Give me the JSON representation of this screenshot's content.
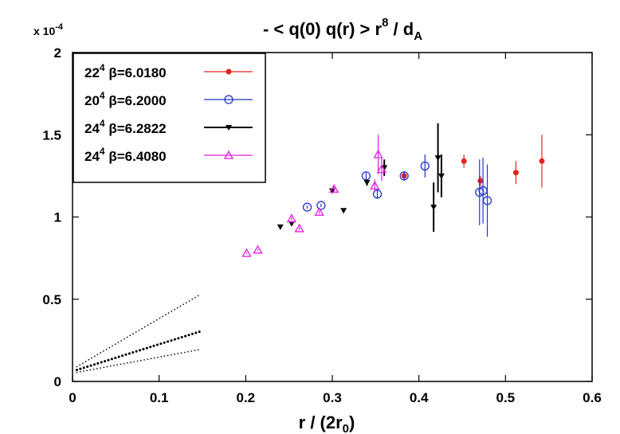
{
  "chart_data": {
    "type": "scatter",
    "title": "- < q(0) q(r) > r",
    "title_sup": "8",
    "title_tail": " / d",
    "title_sub": "A",
    "ylabel": "",
    "xlabel": "r / (2r",
    "xlabel_sub": "0",
    "xlabel_tail": ")",
    "y_multiplier": "x 10",
    "y_multiplier_exp": "-4",
    "xlim": [
      0,
      0.6
    ],
    "ylim": [
      0,
      2
    ],
    "x_ticks": [
      0,
      0.1,
      0.2,
      0.3,
      0.4,
      0.5,
      0.6
    ],
    "x_tick_labels": [
      "0",
      "0.1",
      "0.2",
      "0.3",
      "0.4",
      "0.5",
      "0.6"
    ],
    "y_ticks": [
      0,
      0.5,
      1,
      1.5,
      2
    ],
    "y_tick_labels": [
      "0",
      "0.5",
      "1",
      "1.5",
      "2"
    ],
    "grid": false,
    "legend_position": "top-left",
    "series": [
      {
        "name": "22",
        "name_sup": "4",
        "name_tail": " β=6.0180",
        "color": "#e8231c",
        "marker": "filled-circle",
        "points": [
          {
            "x": 0.383,
            "y": 1.25,
            "err": 0.02
          },
          {
            "x": 0.452,
            "y": 1.34,
            "err": 0.04
          },
          {
            "x": 0.471,
            "y": 1.22,
            "err": 0.03
          },
          {
            "x": 0.512,
            "y": 1.27,
            "err": 0.07
          },
          {
            "x": 0.542,
            "y": 1.34,
            "err": 0.16
          }
        ]
      },
      {
        "name": "20",
        "name_sup": "4",
        "name_tail": " β=6.2000",
        "color": "#2233cc",
        "marker": "open-circle",
        "points": [
          {
            "x": 0.271,
            "y": 1.06,
            "err": 0.01
          },
          {
            "x": 0.287,
            "y": 1.07,
            "err": 0.01
          },
          {
            "x": 0.339,
            "y": 1.25,
            "err": 0.02
          },
          {
            "x": 0.352,
            "y": 1.14,
            "err": 0.03
          },
          {
            "x": 0.383,
            "y": 1.25,
            "err": 0.03
          },
          {
            "x": 0.407,
            "y": 1.31,
            "err": 0.07
          },
          {
            "x": 0.47,
            "y": 1.15,
            "err": 0.2
          },
          {
            "x": 0.474,
            "y": 1.16,
            "err": 0.2
          },
          {
            "x": 0.479,
            "y": 1.1,
            "err": 0.22
          }
        ]
      },
      {
        "name": "24",
        "name_sup": "4",
        "name_tail": " β=6.2822",
        "color": "#000000",
        "marker": "filled-triangle-down",
        "points": [
          {
            "x": 0.24,
            "y": 0.94,
            "err": 0.005
          },
          {
            "x": 0.253,
            "y": 0.96,
            "err": 0.005
          },
          {
            "x": 0.3,
            "y": 1.16,
            "err": 0.01
          },
          {
            "x": 0.313,
            "y": 1.04,
            "err": 0.01
          },
          {
            "x": 0.34,
            "y": 1.21,
            "err": 0.02
          },
          {
            "x": 0.36,
            "y": 1.3,
            "err": 0.05
          },
          {
            "x": 0.417,
            "y": 1.06,
            "err": 0.15
          },
          {
            "x": 0.422,
            "y": 1.36,
            "err": 0.21
          },
          {
            "x": 0.426,
            "y": 1.25,
            "err": 0.13
          }
        ]
      },
      {
        "name": "24",
        "name_sup": "4",
        "name_tail": " β=6.4080",
        "color": "#e020e0",
        "marker": "open-triangle-up",
        "points": [
          {
            "x": 0.201,
            "y": 0.78,
            "err": 0.005
          },
          {
            "x": 0.214,
            "y": 0.8,
            "err": 0.005
          },
          {
            "x": 0.253,
            "y": 0.99,
            "err": 0.01
          },
          {
            "x": 0.262,
            "y": 0.93,
            "err": 0.01
          },
          {
            "x": 0.285,
            "y": 1.03,
            "err": 0.01
          },
          {
            "x": 0.302,
            "y": 1.17,
            "err": 0.02
          },
          {
            "x": 0.349,
            "y": 1.19,
            "err": 0.04
          },
          {
            "x": 0.353,
            "y": 1.38,
            "err": 0.12
          },
          {
            "x": 0.357,
            "y": 1.29,
            "err": 0.07
          }
        ]
      }
    ],
    "fit_lines": [
      {
        "style": "dotted-thick",
        "x": [
          0.005,
          0.148
        ],
        "y": [
          0.07,
          0.305
        ]
      },
      {
        "style": "dotted-thin",
        "x": [
          0.005,
          0.148
        ],
        "y": [
          0.09,
          0.53
        ]
      },
      {
        "style": "dotted-thin",
        "x": [
          0.005,
          0.148
        ],
        "y": [
          0.055,
          0.195
        ]
      }
    ]
  }
}
